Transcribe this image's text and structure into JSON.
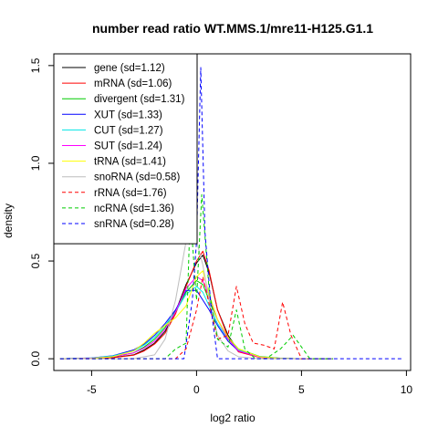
{
  "chart_data": {
    "type": "line",
    "title": "number read ratio WT.MMS.1/mre11-H125.G1.1",
    "xlabel": "log2 ratio",
    "ylabel": "density",
    "xlim": [
      -6.8,
      10.2
    ],
    "ylim": [
      -0.06,
      1.56
    ],
    "xticks": [
      -5,
      0,
      5,
      10
    ],
    "yticks": [
      0.0,
      0.5,
      1.0,
      1.5
    ],
    "xtick_labels": [
      "-5",
      "0",
      "5",
      "10"
    ],
    "ytick_labels": [
      "0.0",
      "0.5",
      "1.0",
      "1.5"
    ],
    "legend_position": "top-left",
    "grid": false,
    "series": [
      {
        "name": "gene (sd=1.12)",
        "color": "#000000",
        "dash": "solid",
        "x": [
          -6.5,
          -5,
          -4,
          -3,
          -2.5,
          -2,
          -1.5,
          -1,
          -0.5,
          0,
          0.3,
          0.6,
          1,
          1.5,
          2,
          3,
          4,
          5,
          6.5
        ],
        "y": [
          0,
          0.002,
          0.006,
          0.02,
          0.045,
          0.08,
          0.14,
          0.24,
          0.38,
          0.49,
          0.53,
          0.44,
          0.25,
          0.12,
          0.04,
          0.008,
          0.002,
          0,
          0
        ]
      },
      {
        "name": "mRNA (sd=1.06)",
        "color": "#ff0000",
        "dash": "solid",
        "x": [
          -6.5,
          -5,
          -4,
          -3,
          -2.5,
          -2,
          -1.5,
          -1,
          -0.5,
          0,
          0.3,
          0.6,
          1,
          1.5,
          2,
          3,
          4,
          5,
          6.5
        ],
        "y": [
          0,
          0.001,
          0.005,
          0.018,
          0.04,
          0.075,
          0.13,
          0.23,
          0.37,
          0.5,
          0.55,
          0.45,
          0.25,
          0.11,
          0.035,
          0.007,
          0.001,
          0,
          0
        ]
      },
      {
        "name": "divergent (sd=1.31)",
        "color": "#00cc00",
        "dash": "solid",
        "x": [
          -6.5,
          -5,
          -4,
          -3,
          -2.5,
          -2,
          -1.5,
          -1,
          -0.5,
          0,
          0.3,
          0.6,
          1,
          1.5,
          2,
          3,
          4,
          5,
          6.5
        ],
        "y": [
          0,
          0.003,
          0.01,
          0.03,
          0.06,
          0.1,
          0.16,
          0.25,
          0.34,
          0.4,
          0.38,
          0.3,
          0.2,
          0.11,
          0.05,
          0.012,
          0.003,
          0,
          0
        ]
      },
      {
        "name": "XUT (sd=1.33)",
        "color": "#0000ff",
        "dash": "solid",
        "x": [
          -6.5,
          -5,
          -4,
          -3,
          -2.5,
          -2,
          -1.5,
          -1,
          -0.5,
          0,
          0.3,
          0.6,
          1,
          1.5,
          2,
          3,
          4,
          5,
          6.5
        ],
        "y": [
          0,
          0.004,
          0.015,
          0.045,
          0.075,
          0.12,
          0.18,
          0.25,
          0.35,
          0.35,
          0.3,
          0.25,
          0.17,
          0.09,
          0.04,
          0.01,
          0.002,
          0,
          0
        ]
      },
      {
        "name": "CUT (sd=1.27)",
        "color": "#00e5e5",
        "dash": "solid",
        "x": [
          -6.5,
          -5,
          -4,
          -3,
          -2.5,
          -2,
          -1.5,
          -1,
          -0.5,
          0,
          0.3,
          0.6,
          1,
          1.5,
          2,
          3,
          4,
          5,
          6.5
        ],
        "y": [
          0,
          0.004,
          0.014,
          0.04,
          0.07,
          0.11,
          0.17,
          0.24,
          0.33,
          0.37,
          0.34,
          0.27,
          0.18,
          0.1,
          0.045,
          0.01,
          0.002,
          0,
          0
        ]
      },
      {
        "name": "SUT (sd=1.24)",
        "color": "#ff00ff",
        "dash": "solid",
        "x": [
          -6.5,
          -5,
          -4,
          -3,
          -2.5,
          -2,
          -1.5,
          -1,
          -0.5,
          0,
          0.3,
          0.6,
          1,
          1.5,
          2,
          3,
          4,
          5,
          6.5
        ],
        "y": [
          0,
          0.003,
          0.01,
          0.03,
          0.055,
          0.09,
          0.15,
          0.24,
          0.36,
          0.42,
          0.4,
          0.32,
          0.2,
          0.1,
          0.04,
          0.008,
          0.002,
          0,
          0
        ]
      },
      {
        "name": "tRNA (sd=1.41)",
        "color": "#ffff00",
        "dash": "solid",
        "x": [
          -6.5,
          -5,
          -4,
          -3,
          -2.5,
          -2,
          -1.5,
          -1,
          -0.5,
          0,
          0.3,
          0.6,
          1,
          1.5,
          2,
          3,
          4,
          5,
          6.5
        ],
        "y": [
          0,
          0.002,
          0.01,
          0.04,
          0.08,
          0.13,
          0.17,
          0.21,
          0.27,
          0.42,
          0.45,
          0.33,
          0.2,
          0.11,
          0.05,
          0.01,
          0.002,
          0,
          0
        ]
      },
      {
        "name": "snoRNA (sd=0.58)",
        "color": "#bebebe",
        "dash": "solid",
        "x": [
          -6.5,
          -3,
          -2,
          -1.5,
          -1,
          -0.5,
          -0.3,
          0,
          0.3,
          0.6,
          1,
          1.5,
          2,
          3,
          6.5
        ],
        "y": [
          0,
          0,
          0.02,
          0.1,
          0.3,
          0.6,
          0.78,
          0.6,
          0.48,
          0.3,
          0.12,
          0.04,
          0.01,
          0,
          0
        ]
      },
      {
        "name": "rRNA (sd=1.76)",
        "color": "#ff0000",
        "dash": "dashed",
        "x": [
          -6.5,
          -1,
          -0.5,
          0,
          0.3,
          0.6,
          1,
          1.5,
          1.9,
          2.3,
          2.7,
          3.2,
          3.7,
          4.1,
          4.5,
          5,
          6.5
        ],
        "y": [
          0,
          0,
          0.05,
          0.25,
          0.42,
          0.28,
          0.1,
          0.12,
          0.37,
          0.18,
          0.08,
          0.07,
          0.05,
          0.29,
          0.12,
          0,
          0
        ]
      },
      {
        "name": "ncRNA (sd=1.36)",
        "color": "#00cc00",
        "dash": "dashed",
        "x": [
          -6.5,
          -1.5,
          -1,
          -0.5,
          -0.3,
          0,
          0.25,
          0.6,
          1,
          1.5,
          1.9,
          2.3,
          2.8,
          3.3,
          4,
          4.6,
          5.4,
          6.5
        ],
        "y": [
          0,
          0,
          0.05,
          0.08,
          0.75,
          0.3,
          0.84,
          0.35,
          0.1,
          0.06,
          0.25,
          0.05,
          0,
          0,
          0.05,
          0.12,
          0,
          0
        ]
      },
      {
        "name": "snRNA (sd=0.28)",
        "color": "#0000ff",
        "dash": "dashed",
        "x": [
          -6.5,
          -1.5,
          -0.6,
          -0.2,
          0,
          0.2,
          0.4,
          0.7,
          1,
          1.5,
          9.8
        ],
        "y": [
          0,
          0,
          0,
          0.3,
          0.6,
          1.49,
          0.65,
          0.25,
          0,
          0,
          0
        ]
      }
    ]
  }
}
